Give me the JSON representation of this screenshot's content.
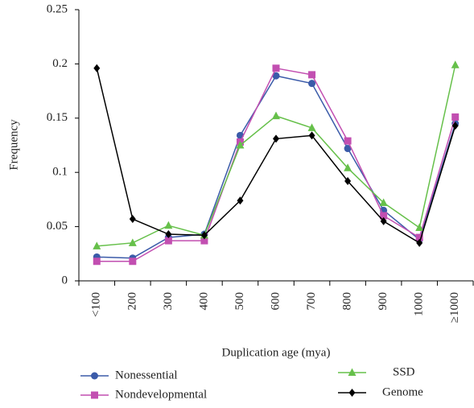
{
  "chart_data": {
    "type": "line",
    "x_label": "Duplication age (mya)",
    "y_label": "Frequency",
    "categories": [
      "<100",
      "200",
      "300",
      "400",
      "500",
      "600",
      "700",
      "800",
      "900",
      "1000",
      "≥1000"
    ],
    "series": [
      {
        "name": "Nonessential",
        "color": "#3b5ba9",
        "marker": "circle",
        "values": [
          0.022,
          0.021,
          0.04,
          0.043,
          0.134,
          0.189,
          0.182,
          0.122,
          0.065,
          0.038,
          0.145
        ]
      },
      {
        "name": "Nondevelopmental",
        "color": "#c24fb1",
        "marker": "square",
        "values": [
          0.018,
          0.018,
          0.037,
          0.037,
          0.128,
          0.196,
          0.19,
          0.129,
          0.06,
          0.04,
          0.151
        ]
      },
      {
        "name": "SSD",
        "color": "#66c04a",
        "marker": "triangle",
        "values": [
          0.032,
          0.035,
          0.051,
          0.042,
          0.125,
          0.152,
          0.141,
          0.104,
          0.072,
          0.049,
          0.199
        ]
      },
      {
        "name": "Genome",
        "color": "#000000",
        "marker": "diamond",
        "values": [
          0.196,
          0.057,
          0.043,
          0.042,
          0.074,
          0.131,
          0.134,
          0.092,
          0.055,
          0.035,
          0.143
        ]
      }
    ],
    "ylim": [
      0,
      0.25
    ],
    "yticks": [
      0,
      0.05,
      0.1,
      0.15,
      0.2,
      0.25
    ]
  }
}
